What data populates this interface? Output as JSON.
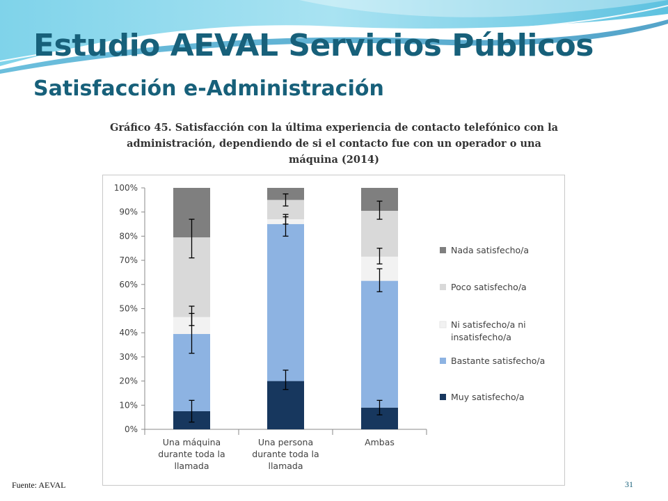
{
  "slide": {
    "title": "Estudio AEVAL Servicios Públicos",
    "subtitle": "Satisfacción e-Administración",
    "source": "Fuente: AEVAL",
    "page_number": "31"
  },
  "chart_data": {
    "type": "bar",
    "stacked": true,
    "title_lines": [
      "Gráfico 45. Satisfacción con la última experiencia de contacto telefónico con la",
      "administración, dependiendo de si el contacto fue con un operador o una",
      "máquina (2014)"
    ],
    "categories": [
      [
        "Una máquina",
        "durante toda la",
        "llamada"
      ],
      [
        "Una persona",
        "durante toda la",
        "llamada"
      ],
      [
        "Ambas"
      ]
    ],
    "ylim": [
      0,
      100
    ],
    "yticks": [
      "0%",
      "10%",
      "20%",
      "30%",
      "40%",
      "50%",
      "60%",
      "70%",
      "80%",
      "90%",
      "100%"
    ],
    "grid": false,
    "legend_position": "right",
    "series": [
      {
        "name": "Muy satisfecho/a",
        "color": "#17375e",
        "values": [
          7.5,
          20,
          9
        ],
        "error_low": [
          3,
          16.5,
          6
        ],
        "error_high": [
          12,
          24.5,
          12
        ]
      },
      {
        "name": "Bastante satisfecho/a",
        "color": "#8db3e2",
        "values": [
          32,
          65,
          52.5
        ],
        "error_low": [
          31.5,
          80,
          57
        ],
        "error_high": [
          48,
          89,
          66.5
        ]
      },
      {
        "name": [
          "Ni satisfecho/a ni",
          "insatisfecho/a"
        ],
        "color": "#f2f2f2",
        "values": [
          7,
          2,
          10
        ],
        "error_low": [
          43,
          85,
          68.5
        ],
        "error_high": [
          51,
          88,
          75
        ]
      },
      {
        "name": "Poco satisfecho/a",
        "color": "#d9d9d9",
        "values": [
          33,
          8,
          19
        ],
        "error_low": [
          71,
          92.5,
          87
        ],
        "error_high": [
          87,
          97.5,
          94.5
        ]
      },
      {
        "name": "Nada satisfecho/a",
        "color": "#7f7f7f",
        "values": [
          20.5,
          5,
          9.5
        ],
        "error_low": [],
        "error_high": []
      }
    ]
  }
}
